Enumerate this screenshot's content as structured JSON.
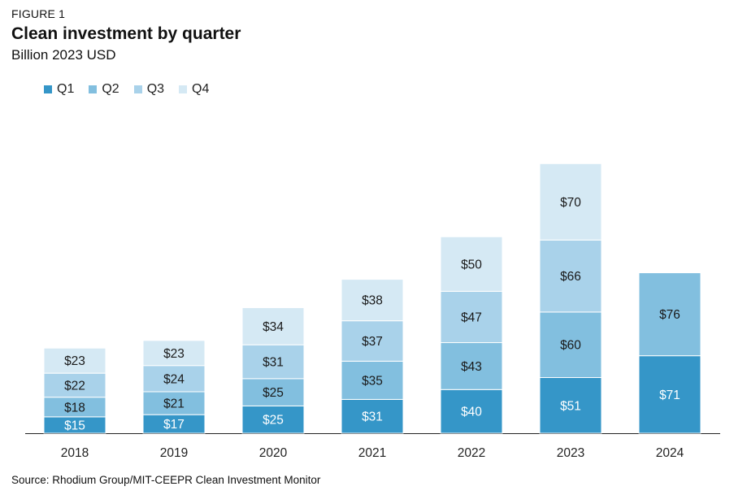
{
  "figure_label": "FIGURE 1",
  "source": "Source: Rhodium Group/MIT-CEEPR Clean Investment Monitor",
  "chart_data": {
    "type": "bar",
    "stacked": true,
    "title": "Clean investment by quarter",
    "subtitle": "Billion 2023 USD",
    "categories": [
      "2018",
      "2019",
      "2020",
      "2021",
      "2022",
      "2023",
      "2024"
    ],
    "series": [
      {
        "name": "Q1",
        "color": "#3596c8",
        "label_color": "#ffffff",
        "values": [
          15,
          17,
          25,
          31,
          40,
          51,
          71
        ],
        "labels": [
          "$15",
          "$17",
          "$25",
          "$31",
          "$40",
          "$51",
          "$71"
        ]
      },
      {
        "name": "Q2",
        "color": "#82bfdf",
        "label_color": "#1a1a1a",
        "values": [
          18,
          21,
          25,
          35,
          43,
          60,
          76
        ],
        "labels": [
          "$18",
          "$21",
          "$25",
          "$35",
          "$43",
          "$60",
          "$76"
        ]
      },
      {
        "name": "Q3",
        "color": "#a9d2ea",
        "label_color": "#1a1a1a",
        "values": [
          22,
          24,
          31,
          37,
          47,
          66,
          null
        ],
        "labels": [
          "$22",
          "$24",
          "$31",
          "$37",
          "$47",
          "$66",
          ""
        ]
      },
      {
        "name": "Q4",
        "color": "#d5e9f4",
        "label_color": "#1a1a1a",
        "values": [
          23,
          23,
          34,
          38,
          50,
          70,
          null
        ],
        "labels": [
          "$23",
          "$23",
          "$34",
          "$38",
          "$50",
          "$70",
          ""
        ]
      }
    ],
    "ylim": [
      0,
      270
    ],
    "grid": false,
    "legend_position": "top-left"
  }
}
